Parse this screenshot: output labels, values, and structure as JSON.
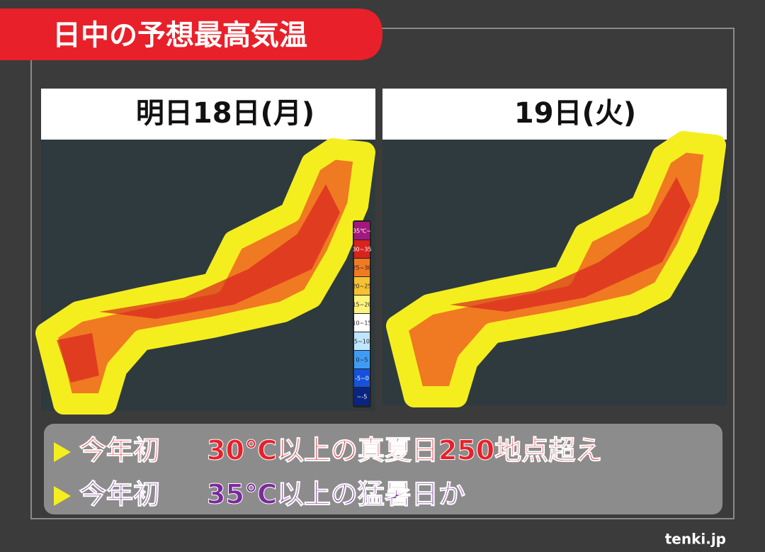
{
  "header": {
    "title": "日中の予想最高気温"
  },
  "panels": [
    {
      "date": "明日18日(月)"
    },
    {
      "date": "19日(火)"
    }
  ],
  "legend": [
    {
      "label": "35℃~",
      "color": "#a3187c"
    },
    {
      "label": "30~35",
      "color": "#d8231f"
    },
    {
      "label": "25~30",
      "color": "#f07a22"
    },
    {
      "label": "20~25",
      "color": "#f7c232"
    },
    {
      "label": "15~20",
      "color": "#fff37a"
    },
    {
      "label": "10~15",
      "color": "#ffffff"
    },
    {
      "label": "5~10",
      "color": "#bfe6ff"
    },
    {
      "label": "0~5",
      "color": "#3f9cf4"
    },
    {
      "label": "-5~0",
      "color": "#1552dc"
    },
    {
      "label": "~-5",
      "color": "#0a2580"
    }
  ],
  "captions": [
    {
      "prefix": "今年初",
      "text": "30℃以上の真夏日250地点超え",
      "color": "#e8202a"
    },
    {
      "prefix": "今年初",
      "text": "35℃以上の猛暑日か",
      "color": "#7a2a9c"
    }
  ],
  "logo": "tenki.jp"
}
